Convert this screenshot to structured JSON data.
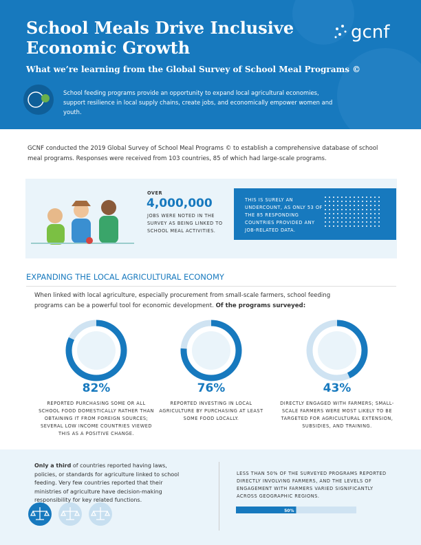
{
  "header": {
    "title_lines": [
      "School Meals Drive Inclusive",
      "Economic Growth"
    ],
    "subtitle": "What we’re learning from the Global Survey of School Meal Programs ©",
    "logo": "gcnf",
    "summary": "School feeding programs provide an opportunity to expand local agricultural economies, support resilience in local supply chains, create jobs, and economically empower women and youth."
  },
  "intro": "GCNF conducted the 2019 Global Survey of School Meal Programs © to establish a comprehensive database of school meal programs. Responses were received from 103 countries, 85 of which had large-scale programs.",
  "jobs": {
    "over": "OVER",
    "number": "4,000,000",
    "caption": "JOBS WERE NOTED IN THE SURVEY AS BEING LINKED TO SCHOOL MEAL ACTIVITIES.",
    "note": "THIS IS SURELY AN UNDERCOUNT, AS ONLY 53 OF THE 85 RESPONDING COUNTRIES PROVIDED ANY JOB-RELATED DATA."
  },
  "section": {
    "heading": "EXPANDING THE LOCAL AGRICULTURAL ECONOMY",
    "text": "When linked with local agriculture, especially procurement from small-scale farmers, school feeding programs can be a powerful tool for economic development. ",
    "text_bold": "Of the programs surveyed:"
  },
  "stats": [
    {
      "value": 82,
      "label": "82%",
      "text": "REPORTED PURCHASING SOME OR ALL SCHOOL FOOD DOMESTICALLY RATHER THAN OBTAINING IT FROM FOREIGN SOURCES; SEVERAL LOW INCOME COUNTRIES VIEWED THIS AS A POSITIVE CHANGE."
    },
    {
      "value": 76,
      "label": "76%",
      "text": "REPORTED INVESTING IN LOCAL AGRICULTURE BY PURCHASING AT LEAST SOME FOOD LOCALLY."
    },
    {
      "value": 43,
      "label": "43%",
      "text": "DIRECTLY ENGAGED WITH FARMERS; SMALL-SCALE FARMERS WERE MOST LIKELY TO BE TARGETED FOR AGRICULTURAL EXTENSION, SUBSIDIES, AND TRAINING."
    }
  ],
  "footer": {
    "bold": "Only a third",
    "text": " of countries reported having laws, policies, or standards for agriculture linked to school feeding. Very few countries reported that their ministries of agriculture have decision-making responsibility for key related functions.",
    "right": "LESS THAN 50% OF THE SURVEYED PROGRAMS REPORTED DIRECTLY INVOLVING FARMERS, AND THE LEVELS OF ENGAGEMENT WITH FARMERS VARIED SIGNIFICANTLY ACROSS GEOGRAPHIC REGIONS.",
    "bar": {
      "value": 50,
      "label": "50%"
    }
  }
}
